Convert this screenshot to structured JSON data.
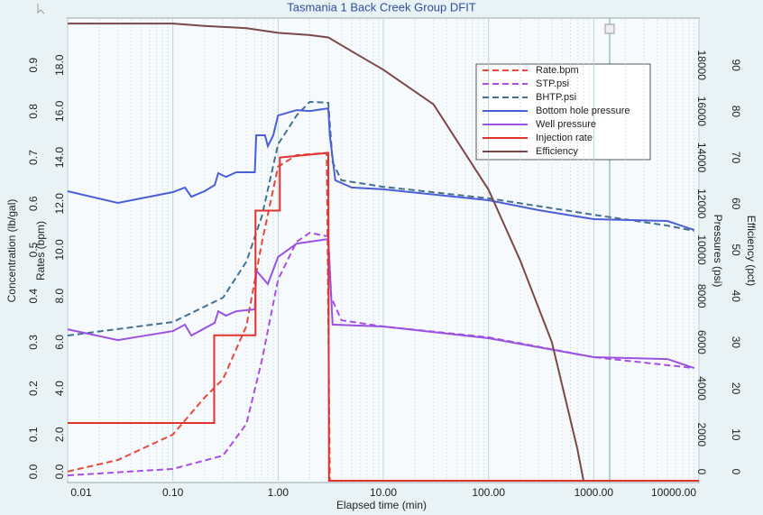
{
  "chart_data": {
    "type": "line",
    "title": "Tasmania 1 Back Creek Group DFIT",
    "xlabel": "Elapsed time (min)",
    "xscale": "log",
    "xlim": [
      0.01,
      10000
    ],
    "xticks": [
      0.01,
      {
        "value": 0.1,
        "label": "0.10"
      },
      {
        "value": 1,
        "label": "1.00"
      },
      {
        "value": 10,
        "label": "10.00"
      },
      {
        "value": 100,
        "label": "100.00"
      },
      {
        "value": 1000,
        "label": "1000.00"
      },
      {
        "value": 10000,
        "label": "10000.00"
      }
    ],
    "grid": true,
    "ylabel": "Concentration (lb/gal)",
    "ylim": [
      0,
      1.0
    ],
    "yticks": [
      {
        "value": 0,
        "label": "0.0"
      },
      0.1,
      0.2,
      0.3,
      0.4,
      0.5,
      0.6,
      0.7,
      0.8,
      0.9
    ],
    "y2label": "Rates (bpm)",
    "y2lim": [
      0,
      20
    ],
    "y2ticks": [
      {
        "value": 0,
        "label": "0.0"
      },
      {
        "value": 2,
        "label": "2.0"
      },
      {
        "value": 4,
        "label": "4.0"
      },
      {
        "value": 6,
        "label": "6.0"
      },
      {
        "value": 8,
        "label": "8.0"
      },
      {
        "value": 10,
        "label": "10.0"
      },
      {
        "value": 12,
        "label": "12.0"
      },
      {
        "value": 14,
        "label": "14.0"
      },
      {
        "value": 16,
        "label": "16.0"
      },
      {
        "value": 18,
        "label": "18.0"
      }
    ],
    "y3label": "Pressures (psi)",
    "y3lim": [
      0,
      20000
    ],
    "y3ticks": [
      0,
      2000,
      4000,
      6000,
      8000,
      10000,
      12000,
      14000,
      16000,
      18000
    ],
    "y4label": "Efficiency (pct)",
    "y4lim": [
      0,
      100
    ],
    "y4ticks": [
      0,
      10,
      20,
      30,
      40,
      50,
      60,
      70,
      80,
      90
    ],
    "legend": "upper right",
    "series": [
      {
        "name": "Rate.bpm",
        "color": "#e8483c",
        "dashed": true,
        "axis": "y2",
        "x": [
          0.01,
          0.03,
          0.1,
          0.2,
          0.3,
          0.5,
          0.7,
          1.0,
          1.5,
          2.9,
          3.1
        ],
        "values": [
          0.4,
          0.9,
          2.0,
          3.6,
          4.4,
          6.7,
          10.3,
          13.6,
          14.1,
          14.2,
          0
        ]
      },
      {
        "name": "STP.psi",
        "color": "#a94ee6",
        "dashed": true,
        "axis": "y3",
        "x": [
          0.01,
          0.1,
          0.3,
          0.5,
          0.7,
          1.0,
          1.5,
          2,
          3,
          3.2,
          4,
          10,
          100,
          1000,
          9000
        ],
        "values": [
          230,
          510,
          1090,
          2460,
          5200,
          8710,
          10350,
          10740,
          10580,
          7930,
          6950,
          6680,
          6210,
          5350,
          4880
        ]
      },
      {
        "name": "BHTP.psi",
        "color": "#45708e",
        "dashed": true,
        "axis": "y3",
        "x": [
          0.01,
          0.1,
          0.3,
          0.5,
          0.7,
          1.0,
          1.5,
          2,
          3,
          3.3,
          4,
          10,
          100,
          1000,
          5000,
          9000
        ],
        "values": [
          6290,
          6875,
          7930,
          9490,
          11450,
          14570,
          15820,
          16410,
          16370,
          13790,
          13010,
          12730,
          12230,
          11520,
          11050,
          10820
        ]
      },
      {
        "name": "Bottom hole pressure",
        "color": "#4a5ed8",
        "axis": "y3",
        "x": [
          0.01,
          0.03,
          0.1,
          0.13,
          0.15,
          0.2,
          0.25,
          0.27,
          0.32,
          0.4,
          0.6,
          0.62,
          0.75,
          0.8,
          0.9,
          1.0,
          1.5,
          2.0,
          3.0,
          3.1,
          3.5,
          5,
          10,
          100,
          300,
          1000,
          5000,
          9000
        ],
        "values": [
          12540,
          12030,
          12500,
          12700,
          12300,
          12540,
          12810,
          13320,
          13160,
          13360,
          13360,
          14960,
          14960,
          14490,
          14960,
          15820,
          16050,
          16010,
          16130,
          14960,
          13010,
          12700,
          12620,
          12150,
          11720,
          11330,
          11250,
          10860
        ]
      },
      {
        "name": "Well pressure",
        "color": "#9b52e3",
        "axis": "y3",
        "x": [
          0.01,
          0.03,
          0.1,
          0.13,
          0.15,
          0.25,
          0.27,
          0.32,
          0.4,
          0.6,
          0.62,
          0.8,
          1.0,
          1.5,
          3.0,
          3.1,
          3.3,
          10,
          100,
          1000,
          5000,
          9000
        ],
        "values": [
          6560,
          6090,
          6480,
          6760,
          6290,
          6840,
          7340,
          7150,
          7340,
          7420,
          9100,
          8520,
          9690,
          10270,
          10470,
          9100,
          6760,
          6680,
          6170,
          5350,
          5270,
          4880
        ]
      },
      {
        "name": "Injection rate",
        "color": "#e0332e",
        "axis": "y2",
        "x": [
          0.01,
          0.247,
          0.247,
          0.61,
          0.61,
          1.04,
          1.04,
          3.0,
          3.05,
          10000
        ],
        "values": [
          2.5,
          2.5,
          6.3,
          6.3,
          11.7,
          11.7,
          14.0,
          14.2,
          0,
          0
        ]
      },
      {
        "name": "Efficiency",
        "color": "#7b4848",
        "axis": "y4",
        "x": [
          0.01,
          0.1,
          0.2,
          0.5,
          1,
          2,
          3,
          5,
          10,
          30,
          100,
          200,
          400,
          700,
          800
        ],
        "values": [
          99,
          99,
          98.5,
          98,
          97,
          96.5,
          96,
          93,
          89,
          81.5,
          63,
          47.7,
          30,
          6.8,
          0
        ]
      }
    ]
  }
}
